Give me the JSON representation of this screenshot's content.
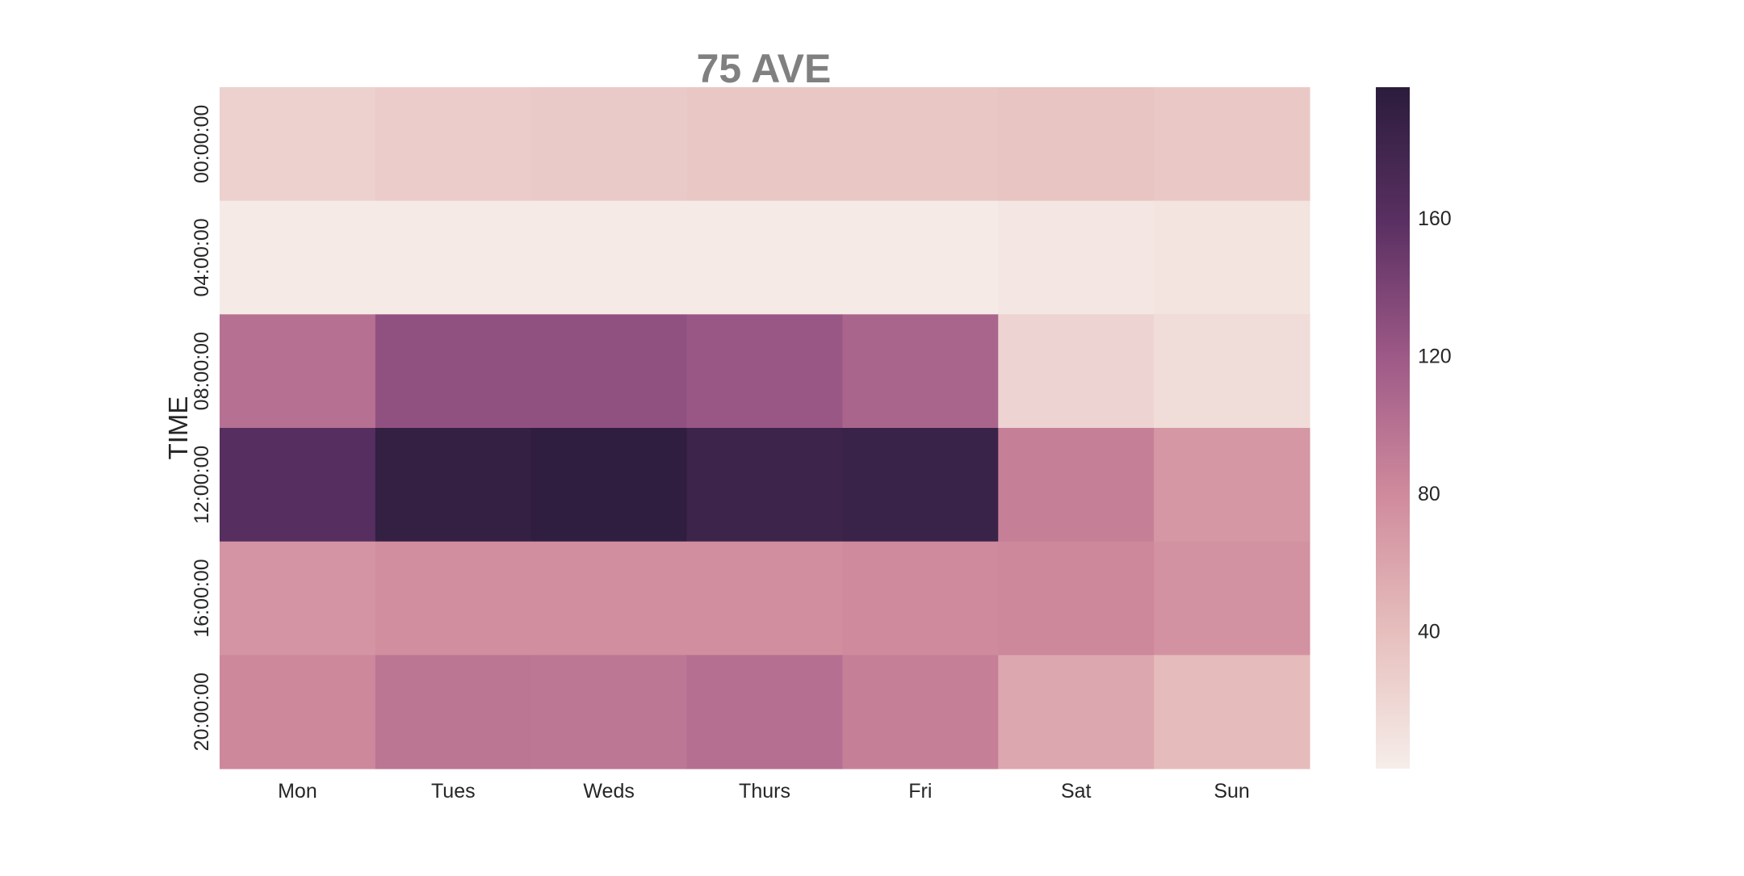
{
  "chart_data": {
    "type": "heatmap",
    "title": "75 AVE",
    "xlabel": "",
    "ylabel": "TIME",
    "x_categories": [
      "Mon",
      "Tues",
      "Weds",
      "Thurs",
      "Fri",
      "Sat",
      "Sun"
    ],
    "y_categories": [
      "00:00:00",
      "04:00:00",
      "08:00:00",
      "12:00:00",
      "16:00:00",
      "20:00:00"
    ],
    "values": [
      [
        24,
        28,
        30,
        33,
        33,
        35,
        32
      ],
      [
        3,
        3,
        3,
        3,
        3,
        6,
        8
      ],
      [
        100,
        127,
        127,
        122,
        110,
        22,
        15
      ],
      [
        162,
        191,
        194,
        183,
        185,
        88,
        70
      ],
      [
        72,
        77,
        77,
        77,
        80,
        82,
        74
      ],
      [
        82,
        96,
        95,
        102,
        88,
        58,
        42
      ]
    ],
    "color_range": [
      0,
      198
    ],
    "colorbar_ticks": [
      40,
      80,
      120,
      160
    ],
    "colormap_stops": [
      "#f6ede9",
      "#e6bfbd",
      "#d08b9d",
      "#9f5a88",
      "#5a3062",
      "#2b1c3c"
    ],
    "grid": false,
    "legend": "right colorbar"
  }
}
